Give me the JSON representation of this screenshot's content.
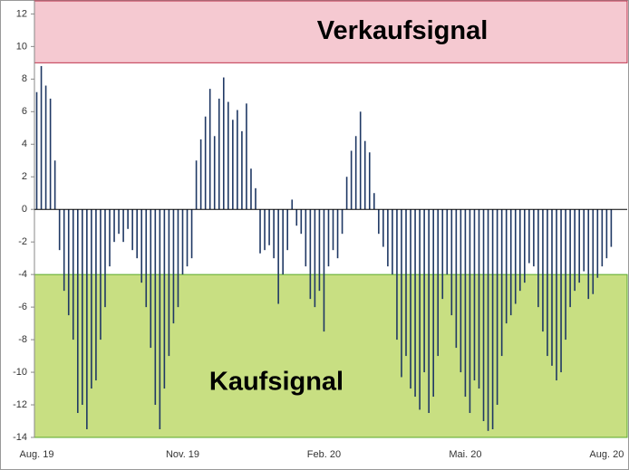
{
  "chart_data": {
    "type": "bar",
    "categories": [
      "Aug. 19",
      null,
      null,
      null,
      null,
      null,
      null,
      null,
      null,
      null,
      null,
      null,
      null,
      null,
      null,
      null,
      null,
      null,
      null,
      null,
      null,
      null,
      null,
      null,
      null,
      null,
      null,
      null,
      null,
      null,
      null,
      null,
      "Nov. 19",
      null,
      null,
      null,
      null,
      null,
      null,
      null,
      null,
      null,
      null,
      null,
      null,
      null,
      null,
      null,
      null,
      null,
      null,
      null,
      null,
      null,
      null,
      null,
      null,
      null,
      null,
      null,
      null,
      null,
      null,
      "Feb. 20",
      null,
      null,
      null,
      null,
      null,
      null,
      null,
      null,
      null,
      null,
      null,
      null,
      null,
      null,
      null,
      null,
      null,
      null,
      null,
      null,
      null,
      null,
      null,
      null,
      null,
      null,
      null,
      null,
      null,
      null,
      "Mai. 20",
      null,
      null,
      null,
      null,
      null,
      null,
      null,
      null,
      null,
      null,
      null,
      null,
      null,
      null,
      null,
      null,
      null,
      null,
      null,
      null,
      null,
      null,
      null,
      null,
      null,
      null,
      null,
      null,
      null,
      null,
      "Aug. 20",
      null,
      null,
      null,
      null
    ],
    "values": [
      7.2,
      8.8,
      7.6,
      6.8,
      3.0,
      -2.5,
      -5,
      -6.5,
      -8,
      -12.5,
      -12,
      -13.5,
      -11,
      -10.5,
      -8,
      -6,
      -3.5,
      -2,
      -1.5,
      -2,
      -1.2,
      -2.5,
      -3,
      -4.5,
      -6,
      -8.5,
      -12,
      -13.5,
      -11,
      -9,
      -7,
      -6,
      -4,
      -3.5,
      -3,
      3,
      4.3,
      5.7,
      7.4,
      4.5,
      6.8,
      8.1,
      6.6,
      5.5,
      6.1,
      4.8,
      6.5,
      2.5,
      1.3,
      -2.7,
      -2.5,
      -2.2,
      -3,
      -5.8,
      -4,
      -2.5,
      0.6,
      -1,
      -1.5,
      -3.5,
      -5.5,
      -6,
      -5,
      -7.5,
      -3.5,
      -2.5,
      -3,
      -1.5,
      2,
      3.6,
      4.5,
      6,
      4.2,
      3.5,
      1,
      -1.5,
      -2.3,
      -3.5,
      -4,
      -8,
      -10.3,
      -9,
      -11,
      -11.5,
      -12.3,
      -10,
      -12.5,
      -11.5,
      -9,
      -5.5,
      -4,
      -6.5,
      -8.5,
      -10,
      -11.5,
      -12.5,
      -10.5,
      -11,
      -13,
      -13.6,
      -13.5,
      -12,
      -9,
      -7,
      -6.5,
      -5.8,
      -5,
      -4.5,
      -3.3,
      -3.5,
      -6,
      -7.5,
      -9,
      -9.6,
      -10.5,
      -10,
      -8,
      -6,
      -5,
      -4.5,
      -3.8,
      -5.5,
      -5.2,
      -4.2,
      -3.5,
      -3,
      -2.3,
      null,
      null,
      null
    ],
    "color": "#1f3864",
    "ylim": [
      -14,
      12.8
    ],
    "yticks": [
      -14,
      -12,
      -10,
      -8,
      -6,
      -4,
      -2,
      0,
      2,
      4,
      6,
      8,
      10,
      12
    ],
    "grid": false,
    "zones": [
      {
        "label": "Verkaufsignal",
        "from": 9,
        "to": 12.8,
        "color": "#f5c9d1"
      },
      {
        "label": "Kaufsignal",
        "from": -14,
        "to": -4,
        "color": "#c8df82"
      }
    ]
  }
}
